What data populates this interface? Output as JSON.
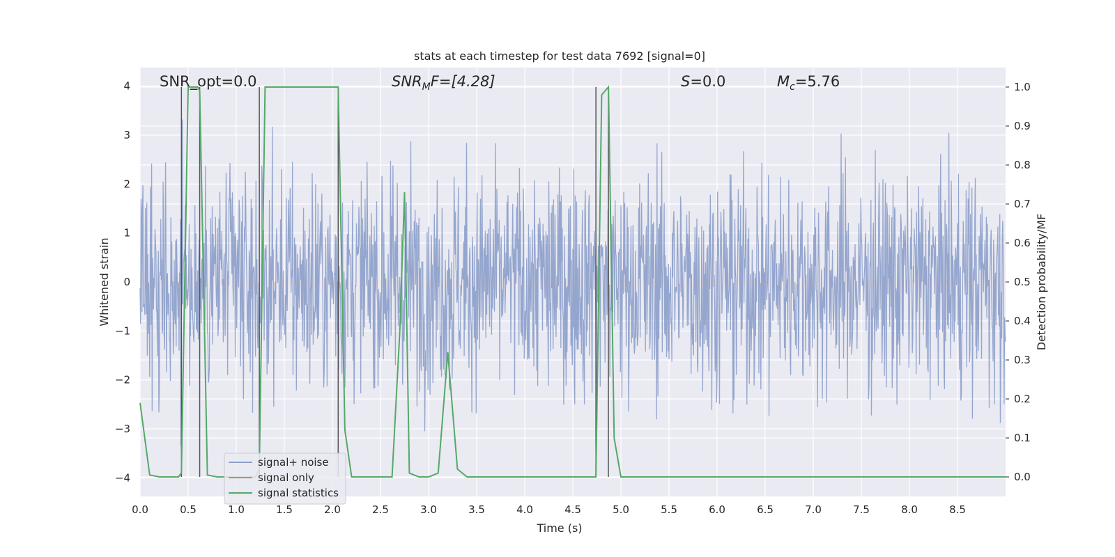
{
  "chart_data": {
    "type": "line",
    "title": "stats at each timestep for test data 7692 [signal=0]",
    "xlabel": "Time (s)",
    "ylabel_left": "Whitened strain",
    "ylabel_right": "Detection probability/MF",
    "xlim": [
      0,
      9.0
    ],
    "ylim_left": [
      -4.38,
      4.38
    ],
    "ylim_right": [
      -0.05,
      1.05
    ],
    "x_ticks": [
      "0.0",
      "0.5",
      "1.0",
      "1.5",
      "2.0",
      "2.5",
      "3.0",
      "3.5",
      "4.0",
      "4.5",
      "5.0",
      "5.5",
      "6.0",
      "6.5",
      "7.0",
      "7.5",
      "8.0",
      "8.5"
    ],
    "y_left_ticks": [
      "4",
      "3",
      "2",
      "1",
      "0",
      "−1",
      "−2",
      "−3",
      "−4"
    ],
    "y_right_ticks": [
      "1.0",
      "0.9",
      "0.8",
      "0.7",
      "0.6",
      "0.5",
      "0.4",
      "0.3",
      "0.2",
      "0.1",
      "0.0"
    ],
    "grid": true,
    "legend_position": "lower-left",
    "annotations": {
      "snr_opt": "SNR_opt=0.0",
      "snr_mf_base": "SNR",
      "snr_mf_sub": "M",
      "snr_mf_rest": "F=[4.28]",
      "s_label": "S",
      "s_value": "=0.0",
      "mc_base": "M",
      "mc_sub": "c",
      "mc_value": "=5.76"
    },
    "series": [
      {
        "name": "signal+ noise",
        "color": "#8c9fca",
        "type": "noise",
        "axis": "left",
        "amplitude_std": 0.8
      },
      {
        "name": "signal only",
        "color": "#dd8452",
        "type": "line",
        "axis": "left",
        "x": [
          0,
          9.0
        ],
        "y": [
          0,
          0
        ]
      },
      {
        "name": "signal statistics",
        "color": "#55a868",
        "type": "line",
        "axis": "right",
        "x": [
          0.0,
          0.1,
          0.2,
          0.3,
          0.4,
          0.43,
          0.5,
          0.6,
          0.62,
          0.7,
          0.8,
          0.9,
          1.0,
          1.1,
          1.2,
          1.24,
          1.3,
          1.4,
          1.5,
          1.6,
          1.7,
          1.8,
          1.9,
          2.0,
          2.06,
          2.13,
          2.2,
          2.3,
          2.4,
          2.5,
          2.62,
          2.7,
          2.75,
          2.8,
          2.9,
          3.0,
          3.1,
          3.2,
          3.3,
          3.4,
          3.6,
          3.8,
          4.0,
          4.2,
          4.4,
          4.6,
          4.74,
          4.8,
          4.87,
          4.93,
          5.0,
          5.2,
          5.5,
          6.0,
          6.5,
          7.0,
          7.5,
          8.0,
          8.5,
          9.0
        ],
        "y": [
          0.19,
          0.005,
          0.0,
          0.0,
          0.0,
          0.01,
          1.0,
          1.0,
          0.99,
          0.005,
          0.0,
          0.0,
          0.0,
          0.0,
          0.0,
          0.02,
          1.0,
          1.0,
          1.0,
          1.0,
          1.0,
          1.0,
          1.0,
          1.0,
          1.0,
          0.12,
          0.0,
          0.0,
          0.0,
          0.0,
          0.0,
          0.37,
          0.73,
          0.01,
          0.0,
          0.0,
          0.01,
          0.32,
          0.02,
          0.0,
          0.0,
          0.0,
          0.0,
          0.0,
          0.0,
          0.0,
          0.0,
          0.98,
          1.0,
          0.1,
          0.0,
          0.0,
          0.0,
          0.0,
          0.0,
          0.0,
          0.0,
          0.0,
          0.0,
          0.0
        ]
      },
      {
        "name": "",
        "color": "#555555",
        "type": "vlines",
        "axis": "right",
        "x": [
          0.43,
          0.62,
          1.24,
          2.06,
          4.74,
          4.87
        ],
        "ymin": 0.0,
        "ymax": 1.0
      }
    ]
  }
}
